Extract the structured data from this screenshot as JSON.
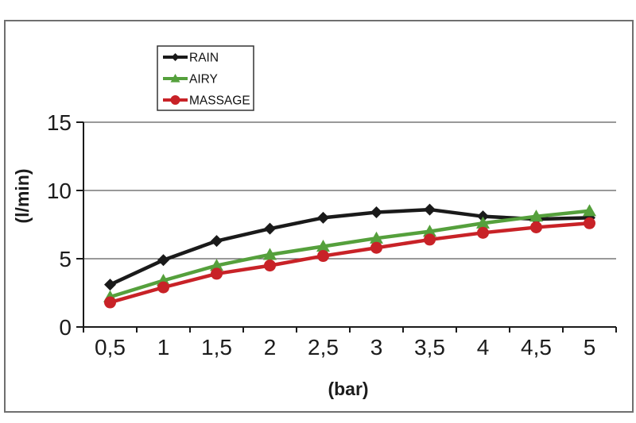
{
  "appearance": {
    "background": "#ffffff",
    "frame_border_color": "#6f6f6f",
    "axis_color": "#1a1a1a",
    "grid_color": "#5c5c5c",
    "tick_text_color": "#1c1c1c",
    "legend_border_color": "#333333",
    "legend_text_color": "#111111"
  },
  "chart_data": {
    "type": "line",
    "title": "",
    "xlabel": "(bar)",
    "ylabel": "(l/min)",
    "x_tick_labels": [
      "0,5",
      "1",
      "1,5",
      "2",
      "2,5",
      "3",
      "3,5",
      "4",
      "4,5",
      "5"
    ],
    "x_values": [
      0.5,
      1,
      1.5,
      2,
      2.5,
      3,
      3.5,
      4,
      4.5,
      5
    ],
    "y_ticks": [
      0,
      5,
      10,
      15
    ],
    "y_tick_labels": [
      "0",
      "5",
      "10",
      "15"
    ],
    "ylim": [
      0,
      15
    ],
    "grid": "horizontal-only",
    "legend_position": "top-left-inside",
    "series": [
      {
        "name": "RAIN",
        "color": "#1a1a1a",
        "marker": "diamond",
        "values": [
          3.1,
          4.9,
          6.3,
          7.2,
          8.0,
          8.4,
          8.6,
          8.1,
          7.9,
          8.0
        ]
      },
      {
        "name": "AIRY",
        "color": "#55a03c",
        "marker": "triangle",
        "values": [
          2.2,
          3.4,
          4.5,
          5.3,
          5.9,
          6.5,
          7.0,
          7.6,
          8.1,
          8.5
        ]
      },
      {
        "name": "MASSAGE",
        "color": "#c82227",
        "marker": "circle",
        "values": [
          1.8,
          2.9,
          3.9,
          4.5,
          5.2,
          5.8,
          6.4,
          6.9,
          7.3,
          7.6
        ]
      }
    ]
  }
}
